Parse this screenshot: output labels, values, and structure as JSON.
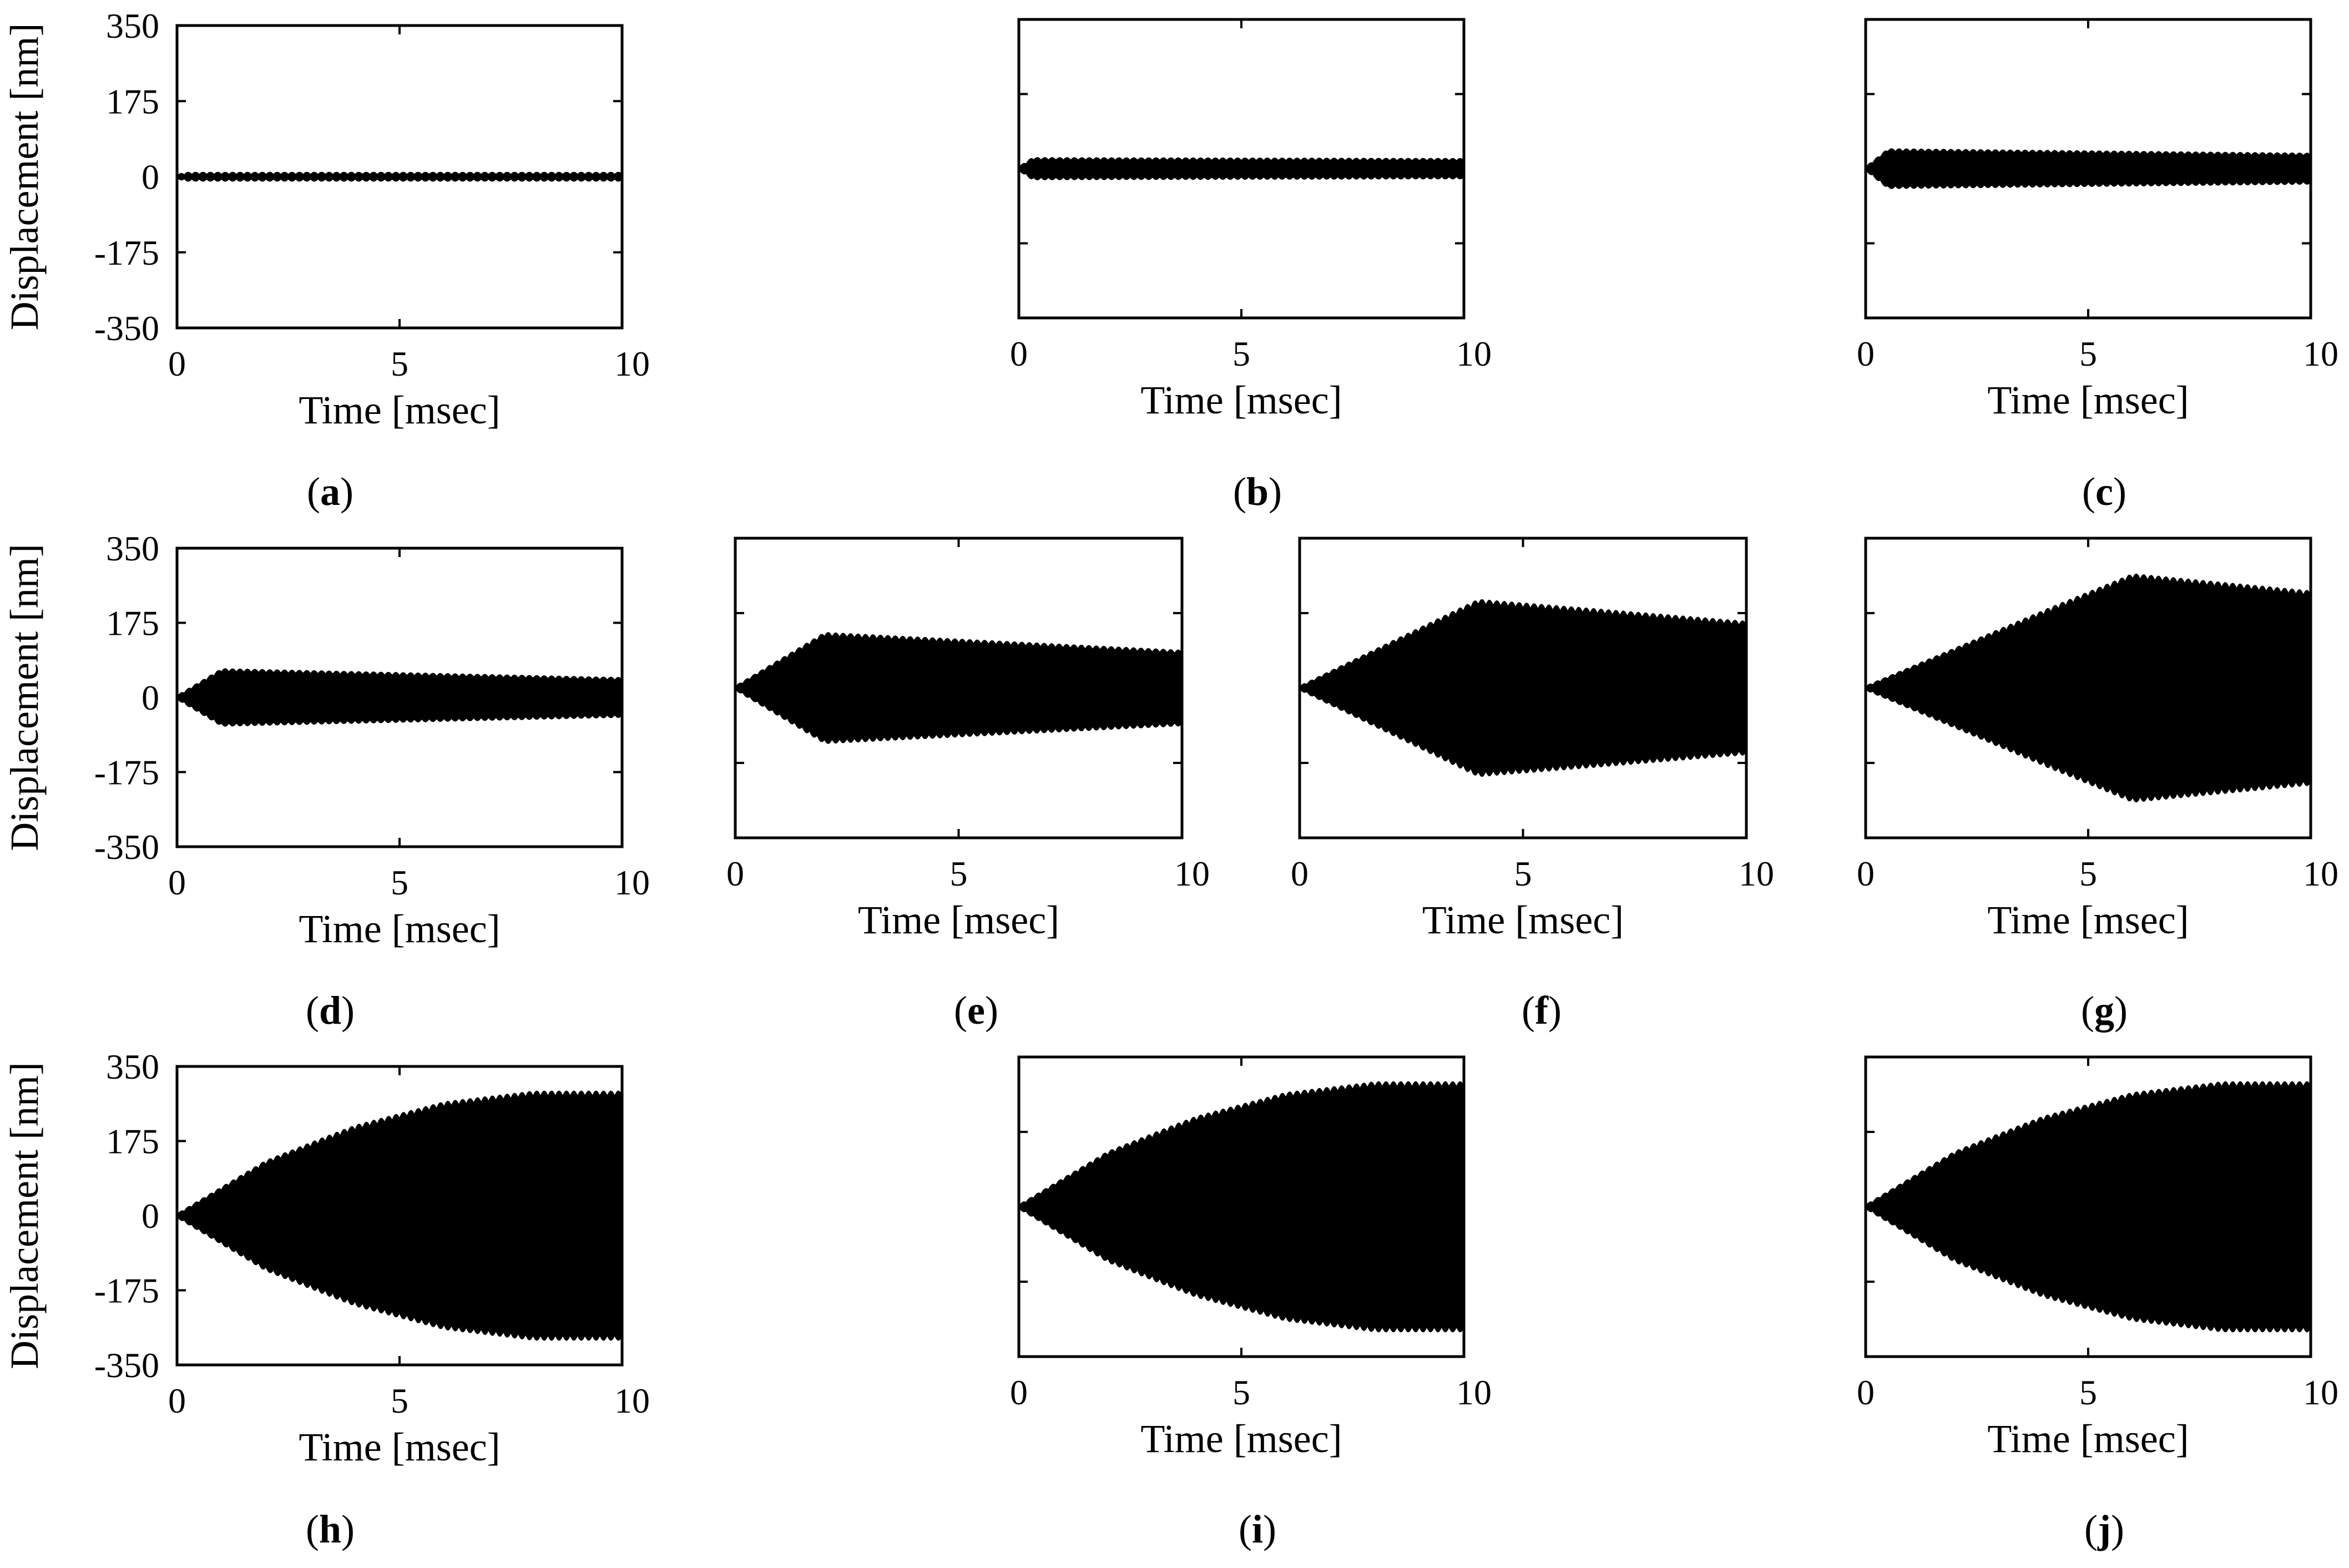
{
  "figure": {
    "ink_color": "#000000",
    "background": "#ffffff"
  },
  "chart_data": [
    {
      "panel": "a",
      "label_letter": "a",
      "type": "area",
      "title": "",
      "xlabel": "Time [msec]",
      "ylabel": "Displacement [nm]",
      "xlim": [
        0,
        10
      ],
      "ylim": [
        -350,
        350
      ],
      "x_ticks": [
        "0",
        "5",
        "10"
      ],
      "y_ticks": [
        "350",
        "175",
        "0",
        "-175",
        "-350"
      ],
      "grid": false,
      "envelope": {
        "x": [
          0,
          0.2,
          10
        ],
        "upper": [
          0,
          5,
          5
        ],
        "lower": [
          0,
          -5,
          -5
        ]
      }
    },
    {
      "panel": "b",
      "label_letter": "b",
      "type": "area",
      "title": "",
      "xlabel": "Time [msec]",
      "ylabel": "",
      "xlim": [
        0,
        10
      ],
      "ylim": [
        -350,
        350
      ],
      "x_ticks": [
        "0",
        "5",
        "10"
      ],
      "y_ticks": [],
      "grid": false,
      "envelope": {
        "x": [
          0,
          0.3,
          10
        ],
        "upper": [
          0,
          20,
          18
        ],
        "lower": [
          0,
          -20,
          -18
        ]
      }
    },
    {
      "panel": "c",
      "label_letter": "c",
      "type": "area",
      "title": "",
      "xlabel": "Time [msec]",
      "ylabel": "",
      "xlim": [
        0,
        10
      ],
      "ylim": [
        -350,
        350
      ],
      "x_ticks": [
        "0",
        "5",
        "10"
      ],
      "y_ticks": [],
      "grid": false,
      "envelope": {
        "x": [
          0,
          0.5,
          10
        ],
        "upper": [
          0,
          40,
          30
        ],
        "lower": [
          0,
          -40,
          -30
        ]
      }
    },
    {
      "panel": "d",
      "label_letter": "d",
      "type": "area",
      "title": "",
      "xlabel": "Time [msec]",
      "ylabel": "Displacement [nm]",
      "xlim": [
        0,
        10
      ],
      "ylim": [
        -350,
        350
      ],
      "x_ticks": [
        "0",
        "5",
        "10"
      ],
      "y_ticks": [
        "350",
        "175",
        "0",
        "-175",
        "-350"
      ],
      "grid": false,
      "envelope": {
        "x": [
          0,
          1,
          10
        ],
        "upper": [
          0,
          60,
          40
        ],
        "lower": [
          0,
          -60,
          -40
        ]
      }
    },
    {
      "panel": "e",
      "label_letter": "e",
      "type": "area",
      "title": "",
      "xlabel": "Time [msec]",
      "ylabel": "",
      "xlim": [
        0,
        10
      ],
      "ylim": [
        -350,
        350
      ],
      "x_ticks": [
        "0",
        "5",
        "10"
      ],
      "y_ticks": [],
      "grid": false,
      "envelope": {
        "x": [
          0,
          2,
          10
        ],
        "upper": [
          0,
          120,
          80
        ],
        "lower": [
          0,
          -120,
          -80
        ]
      }
    },
    {
      "panel": "f",
      "label_letter": "f",
      "type": "area",
      "title": "",
      "xlabel": "Time [msec]",
      "ylabel": "",
      "xlim": [
        0,
        10
      ],
      "ylim": [
        -350,
        350
      ],
      "x_ticks": [
        "0",
        "5",
        "10"
      ],
      "y_ticks": [],
      "grid": false,
      "envelope": {
        "x": [
          0,
          4,
          10
        ],
        "upper": [
          0,
          195,
          145
        ],
        "lower": [
          0,
          -195,
          -145
        ]
      }
    },
    {
      "panel": "g",
      "label_letter": "g",
      "type": "area",
      "title": "",
      "xlabel": "Time [msec]",
      "ylabel": "",
      "xlim": [
        0,
        10
      ],
      "ylim": [
        -350,
        350
      ],
      "x_ticks": [
        "0",
        "5",
        "10"
      ],
      "y_ticks": [],
      "grid": false,
      "envelope": {
        "x": [
          0,
          6,
          10
        ],
        "upper": [
          0,
          255,
          215
        ],
        "lower": [
          0,
          -255,
          -215
        ]
      }
    },
    {
      "panel": "h",
      "label_letter": "h",
      "type": "area",
      "title": "",
      "xlabel": "Time [msec]",
      "ylabel": "Displacement [nm]",
      "xlim": [
        0,
        10
      ],
      "ylim": [
        -350,
        350
      ],
      "x_ticks": [
        "0",
        "5",
        "10"
      ],
      "y_ticks": [
        "350",
        "175",
        "0",
        "-175",
        "-350"
      ],
      "grid": false,
      "envelope": {
        "x": [
          0,
          2,
          4,
          6,
          8,
          10
        ],
        "upper": [
          0,
          120,
          200,
          255,
          280,
          280
        ],
        "lower": [
          0,
          -120,
          -200,
          -255,
          -280,
          -280
        ]
      }
    },
    {
      "panel": "i",
      "label_letter": "i",
      "type": "area",
      "title": "",
      "xlabel": "Time [msec]",
      "ylabel": "",
      "xlim": [
        0,
        10
      ],
      "ylim": [
        -350,
        350
      ],
      "x_ticks": [
        "0",
        "5",
        "10"
      ],
      "y_ticks": [],
      "grid": false,
      "envelope": {
        "x": [
          0,
          2,
          4,
          6,
          8,
          10
        ],
        "upper": [
          0,
          120,
          200,
          255,
          280,
          280
        ],
        "lower": [
          0,
          -120,
          -200,
          -255,
          -280,
          -280
        ]
      }
    },
    {
      "panel": "j",
      "label_letter": "j",
      "type": "area",
      "title": "",
      "xlabel": "Time [msec]",
      "ylabel": "",
      "xlim": [
        0,
        10
      ],
      "ylim": [
        -350,
        350
      ],
      "x_ticks": [
        "0",
        "5",
        "10"
      ],
      "y_ticks": [],
      "grid": false,
      "envelope": {
        "x": [
          0,
          2,
          4,
          6,
          8,
          10
        ],
        "upper": [
          0,
          120,
          200,
          255,
          280,
          280
        ],
        "lower": [
          0,
          -120,
          -200,
          -255,
          -280,
          -280
        ]
      }
    }
  ]
}
